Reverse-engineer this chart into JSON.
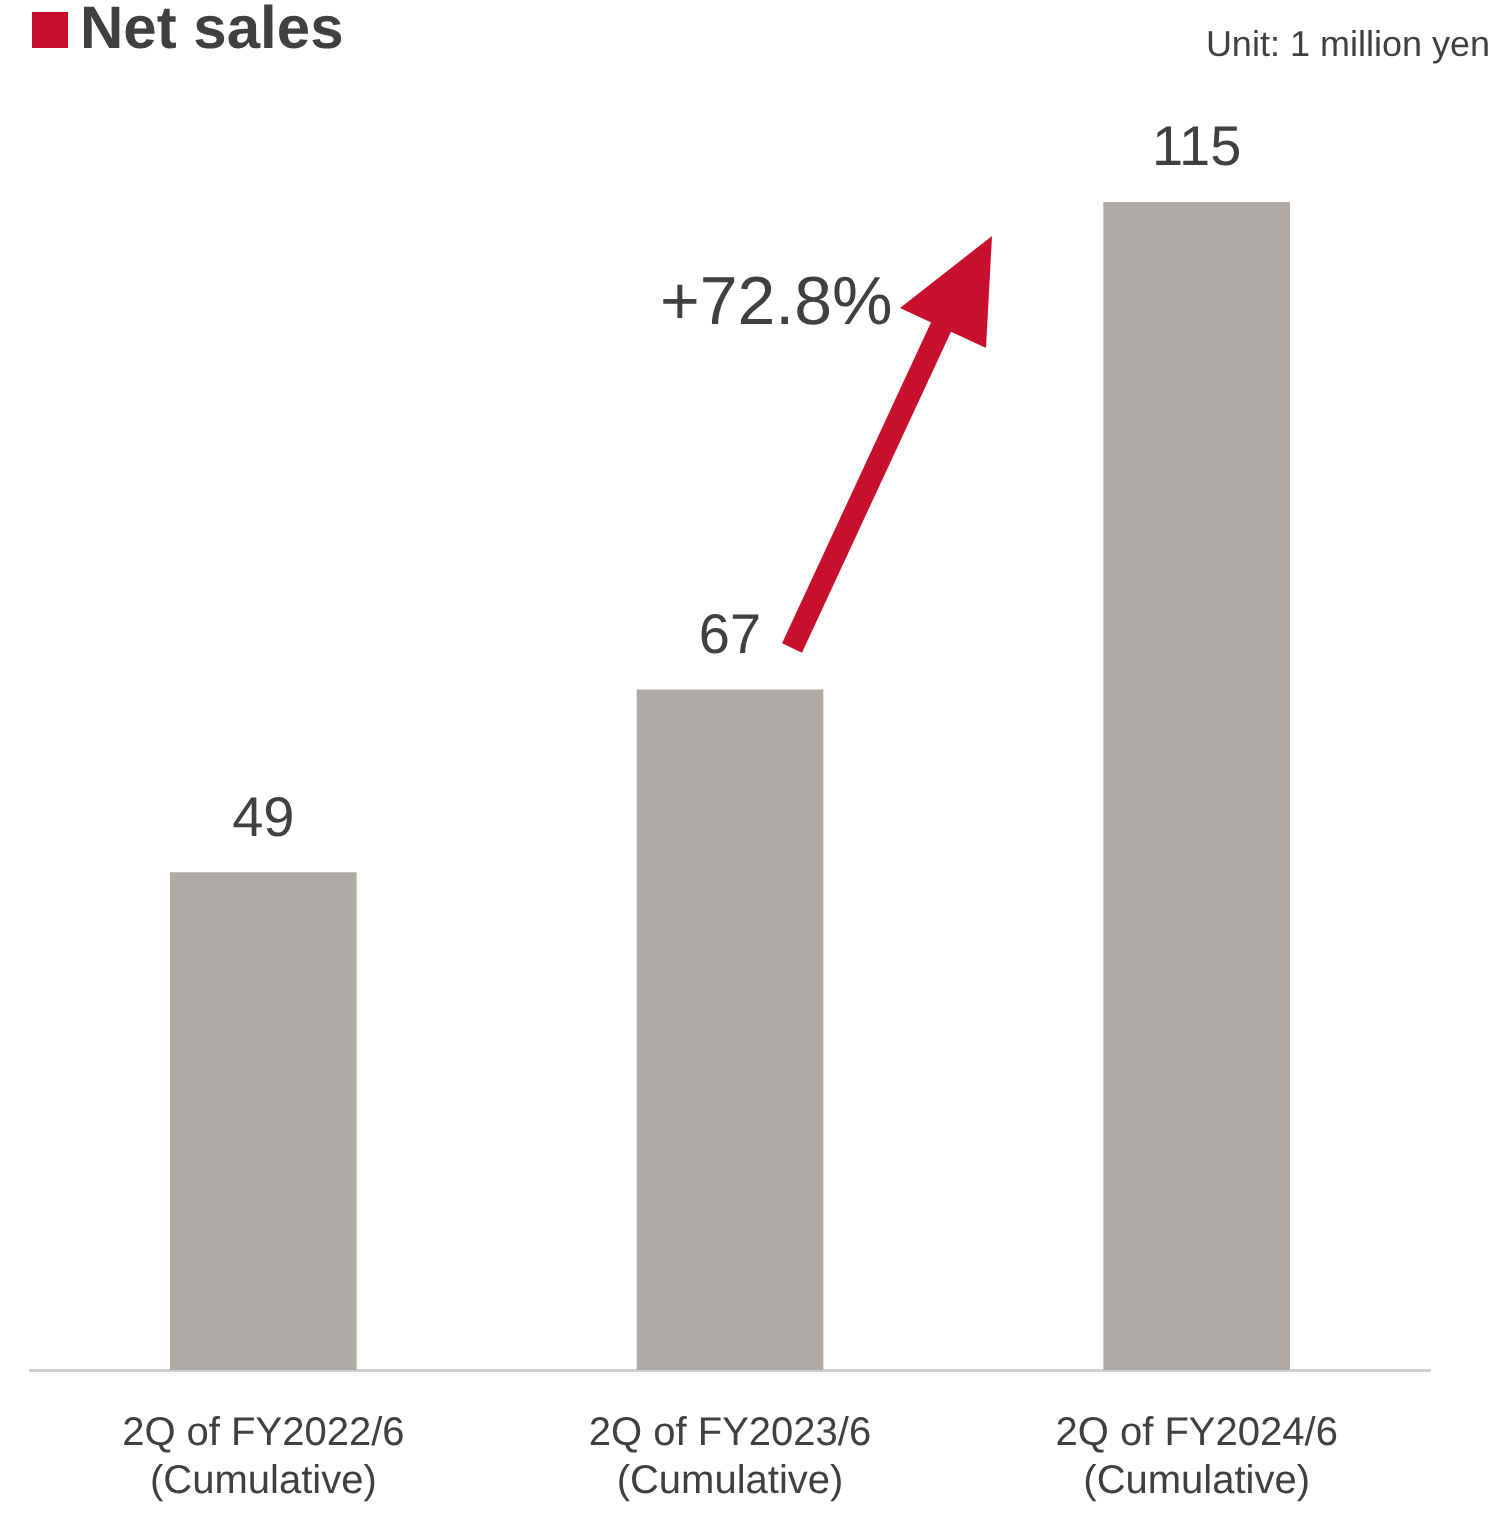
{
  "chart_data": {
    "type": "bar",
    "title": "Net sales",
    "categories": [
      "2Q of FY2022/6\n(Cumulative)",
      "2Q of FY2023/6\n(Cumulative)",
      "2Q of FY2024/6\n(Cumulative)"
    ],
    "values": [
      49,
      67,
      115
    ],
    "color": "#aeaba6",
    "data_labels": true,
    "annotations": [
      "Unit: 1 million yen",
      "+72.8%"
    ]
  }
}
